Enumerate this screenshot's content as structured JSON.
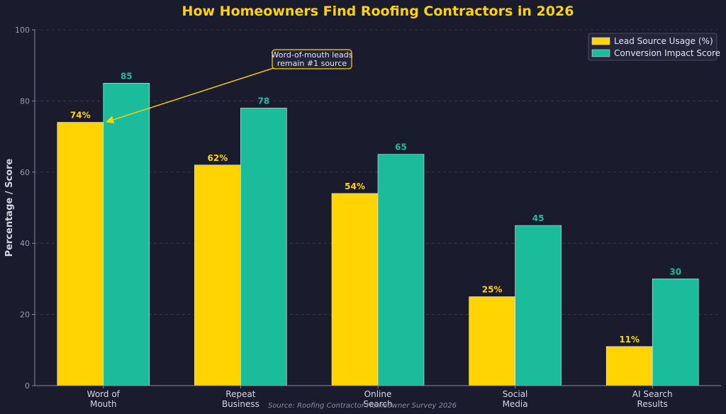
{
  "colors": {
    "background": "#1b1b2e",
    "usage": "#ffd400",
    "conversion": "#1abc9c",
    "annotation": "#ffd400"
  },
  "chart_data": {
    "type": "bar",
    "title": "How Homeowners Find Roofing Contractors in 2026",
    "xlabel": "",
    "ylabel": "Percentage / Score",
    "ylim": [
      0,
      100
    ],
    "yticks": [
      0,
      20,
      40,
      60,
      80,
      100
    ],
    "categories": [
      [
        "Word of",
        "Mouth"
      ],
      [
        "Repeat",
        "Business"
      ],
      [
        "Online",
        "Search"
      ],
      [
        "Social",
        "Media"
      ],
      [
        "AI Search",
        "Results"
      ]
    ],
    "series": [
      {
        "name": "Lead Source Usage (%)",
        "values": [
          74,
          62,
          54,
          25,
          11
        ],
        "value_labels": [
          "74%",
          "62%",
          "54%",
          "25%",
          "11%"
        ]
      },
      {
        "name": "Conversion Impact Score",
        "values": [
          85,
          78,
          65,
          45,
          30
        ],
        "value_labels": [
          "85",
          "78",
          "65",
          "45",
          "30"
        ]
      }
    ],
    "legend_position": "top-right",
    "grid": "horizontal dashed",
    "annotation": {
      "lines": [
        "Word-of-mouth leads",
        "remain #1 source"
      ],
      "points_to": {
        "category": 0,
        "series": 0,
        "value": 74
      }
    },
    "source": "Source: Roofing Contractor Homeowner Survey 2026"
  }
}
